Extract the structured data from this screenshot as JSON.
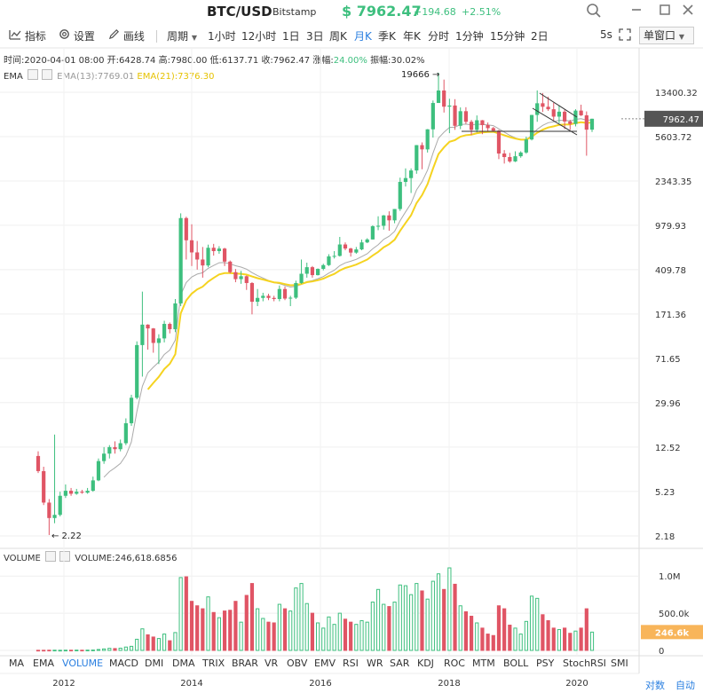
{
  "title": {
    "symbol": "BTC/USD",
    "exchange": "Bitstamp",
    "price": "$ 7962.47",
    "change": "+194.68",
    "change_pct": "+2.51%"
  },
  "window_buttons": [
    "search-icon",
    "minimize-icon",
    "maximize-icon",
    "close-icon"
  ],
  "toolbar": {
    "indicators": "指标",
    "settings": "设置",
    "draw": "画线",
    "period": "周期",
    "periods": [
      "1小时",
      "12小时",
      "1日",
      "3日",
      "周K",
      "月K",
      "季K",
      "年K",
      "分时",
      "1分钟",
      "15分钟",
      "2日"
    ],
    "active_period": "月K",
    "refresh": "5s",
    "window_mode": "单窗口"
  },
  "info": {
    "time": "时间:2020-04-01 08:00",
    "open": "开:6428.74",
    "high": "高:7980.00",
    "low": "低:6137.71",
    "close": "收:7962.47",
    "change_label": "涨幅:",
    "change_value": "24.00%",
    "amp": "振幅:30.02%"
  },
  "ema_legend": {
    "name": "EMA",
    "ema13": "EMA(13):7769.01",
    "ema21": "EMA(21):7376.30"
  },
  "vol_legend": {
    "name": "VOLUME",
    "value": "VOLUME:246,618.6856"
  },
  "indicators": [
    "MA",
    "EMA",
    "VOLUME",
    "MACD",
    "DMI",
    "DMA",
    "TRIX",
    "BRAR",
    "VR",
    "OBV",
    "EMV",
    "RSI",
    "WR",
    "SAR",
    "KDJ",
    "ROC",
    "MTM",
    "BOLL",
    "PSY",
    "StochRSI",
    "SMI"
  ],
  "active_indicator": "VOLUME",
  "bottom": {
    "contrast": "对数",
    "auto": "自动"
  },
  "colors": {
    "up": "#3dbf7e",
    "down": "#e05565",
    "ema13": "#aaaaaa",
    "ema21": "#f5d320",
    "accent": "#2a7fe0",
    "vol_tag": "#f8b55a"
  },
  "chart_data": {
    "type": "candlestick",
    "scale": "log",
    "price_ticks": [
      "13400.32",
      "5603.72",
      "2343.35",
      "979.93",
      "409.78",
      "171.36",
      "71.65",
      "29.96",
      "12.52",
      "5.23",
      "2.18"
    ],
    "vol_ticks": [
      "1.0M",
      "500.0k",
      "0"
    ],
    "x_labels": [
      "2012",
      "2014",
      "2016",
      "2018",
      "2020"
    ],
    "last_price_tag": "7962.47",
    "last_vol_tag": "246.6k",
    "max_label": "19666",
    "min_label": "2.22",
    "candles": [
      {
        "o": 10.5,
        "c": 7.8,
        "h": 11.5,
        "l": 7.5,
        "v": 2
      },
      {
        "o": 7.8,
        "c": 4.2,
        "h": 8.5,
        "l": 4.0,
        "v": 2
      },
      {
        "o": 4.2,
        "c": 3.1,
        "h": 4.5,
        "l": 2.22,
        "v": 3
      },
      {
        "o": 3.1,
        "c": 3.3,
        "h": 16.0,
        "l": 2.8,
        "v": 3
      },
      {
        "o": 3.3,
        "c": 4.8,
        "h": 5.2,
        "l": 3.2,
        "v": 2
      },
      {
        "o": 4.8,
        "c": 5.3,
        "h": 6.0,
        "l": 4.6,
        "v": 3
      },
      {
        "o": 5.3,
        "c": 5.0,
        "h": 5.6,
        "l": 4.8,
        "v": 3
      },
      {
        "o": 5.0,
        "c": 5.2,
        "h": 5.5,
        "l": 4.9,
        "v": 4
      },
      {
        "o": 5.2,
        "c": 5.1,
        "h": 5.4,
        "l": 5.0,
        "v": 3
      },
      {
        "o": 5.1,
        "c": 5.3,
        "h": 5.6,
        "l": 5.0,
        "v": 4
      },
      {
        "o": 5.3,
        "c": 6.5,
        "h": 7.0,
        "l": 5.2,
        "v": 5
      },
      {
        "o": 6.5,
        "c": 9.5,
        "h": 10.0,
        "l": 6.4,
        "v": 12
      },
      {
        "o": 9.5,
        "c": 11.0,
        "h": 12.5,
        "l": 9.0,
        "v": 20
      },
      {
        "o": 11.0,
        "c": 12.5,
        "h": 13.0,
        "l": 10.0,
        "v": 28
      },
      {
        "o": 12.5,
        "c": 12.0,
        "h": 14.0,
        "l": 11.0,
        "v": 25
      },
      {
        "o": 12.0,
        "c": 13.5,
        "h": 14.5,
        "l": 11.5,
        "v": 30
      },
      {
        "o": 13.5,
        "c": 20.0,
        "h": 22.0,
        "l": 13.0,
        "v": 45
      },
      {
        "o": 20.0,
        "c": 33.0,
        "h": 35.0,
        "l": 19.0,
        "v": 55
      },
      {
        "o": 33.0,
        "c": 93.0,
        "h": 100.0,
        "l": 32.0,
        "v": 150
      },
      {
        "o": 93.0,
        "c": 139.0,
        "h": 266.0,
        "l": 50.0,
        "v": 290
      },
      {
        "o": 139.0,
        "c": 129.0,
        "h": 140.0,
        "l": 85.0,
        "v": 210
      },
      {
        "o": 129.0,
        "c": 97.0,
        "h": 130.0,
        "l": 80.0,
        "v": 180
      },
      {
        "o": 97.0,
        "c": 106.0,
        "h": 115.0,
        "l": 64.0,
        "v": 160
      },
      {
        "o": 106.0,
        "c": 141.0,
        "h": 150.0,
        "l": 98.0,
        "v": 220
      },
      {
        "o": 141.0,
        "c": 127.0,
        "h": 145.0,
        "l": 117.0,
        "v": 130
      },
      {
        "o": 127.0,
        "c": 211.0,
        "h": 230.0,
        "l": 120.0,
        "v": 240
      },
      {
        "o": 211.0,
        "c": 1130.0,
        "h": 1240.0,
        "l": 200.0,
        "v": 980
      },
      {
        "o": 1130.0,
        "c": 730.0,
        "h": 1160.0,
        "l": 500.0,
        "v": 990
      },
      {
        "o": 730.0,
        "c": 575.0,
        "h": 1000.0,
        "l": 440.0,
        "v": 660
      },
      {
        "o": 575.0,
        "c": 500.0,
        "h": 720.0,
        "l": 410.0,
        "v": 600
      },
      {
        "o": 500.0,
        "c": 445.0,
        "h": 640.0,
        "l": 350.0,
        "v": 560
      },
      {
        "o": 445.0,
        "c": 630.0,
        "h": 670.0,
        "l": 430.0,
        "v": 720
      },
      {
        "o": 630.0,
        "c": 590.0,
        "h": 680.0,
        "l": 540.0,
        "v": 510
      },
      {
        "o": 590.0,
        "c": 620.0,
        "h": 650.0,
        "l": 560.0,
        "v": 440
      },
      {
        "o": 620.0,
        "c": 480.0,
        "h": 630.0,
        "l": 440.0,
        "v": 530
      },
      {
        "o": 480.0,
        "c": 390.0,
        "h": 490.0,
        "l": 380.0,
        "v": 540
      },
      {
        "o": 390.0,
        "c": 340.0,
        "h": 415.0,
        "l": 320.0,
        "v": 660
      },
      {
        "o": 340.0,
        "c": 360.0,
        "h": 400.0,
        "l": 310.0,
        "v": 380
      },
      {
        "o": 360.0,
        "c": 315.0,
        "h": 365.0,
        "l": 275.0,
        "v": 740
      },
      {
        "o": 315.0,
        "c": 218.0,
        "h": 320.0,
        "l": 170.0,
        "v": 900
      },
      {
        "o": 218.0,
        "c": 235.0,
        "h": 280.0,
        "l": 200.0,
        "v": 560
      },
      {
        "o": 235.0,
        "c": 245.0,
        "h": 260.0,
        "l": 220.0,
        "v": 430
      },
      {
        "o": 245.0,
        "c": 235.0,
        "h": 255.0,
        "l": 225.0,
        "v": 380
      },
      {
        "o": 235.0,
        "c": 230.0,
        "h": 245.0,
        "l": 220.0,
        "v": 370
      },
      {
        "o": 230.0,
        "c": 280.0,
        "h": 300.0,
        "l": 220.0,
        "v": 620
      },
      {
        "o": 280.0,
        "c": 232.0,
        "h": 295.0,
        "l": 225.0,
        "v": 560
      },
      {
        "o": 232.0,
        "c": 236.0,
        "h": 245.0,
        "l": 200.0,
        "v": 530
      },
      {
        "o": 236.0,
        "c": 315.0,
        "h": 330.0,
        "l": 230.0,
        "v": 840
      },
      {
        "o": 315.0,
        "c": 378.0,
        "h": 500.0,
        "l": 310.0,
        "v": 900
      },
      {
        "o": 378.0,
        "c": 430.0,
        "h": 470.0,
        "l": 350.0,
        "v": 630
      },
      {
        "o": 430.0,
        "c": 368.0,
        "h": 440.0,
        "l": 350.0,
        "v": 500
      },
      {
        "o": 368.0,
        "c": 416.0,
        "h": 420.0,
        "l": 365.0,
        "v": 370
      },
      {
        "o": 416.0,
        "c": 448.0,
        "h": 460.0,
        "l": 404.0,
        "v": 300
      },
      {
        "o": 448.0,
        "c": 532.0,
        "h": 555.0,
        "l": 440.0,
        "v": 450
      },
      {
        "o": 532.0,
        "c": 537.0,
        "h": 590.0,
        "l": 510.0,
        "v": 350
      },
      {
        "o": 537.0,
        "c": 672.0,
        "h": 780.0,
        "l": 530.0,
        "v": 500
      },
      {
        "o": 672.0,
        "c": 621.0,
        "h": 700.0,
        "l": 600.0,
        "v": 420
      },
      {
        "o": 621.0,
        "c": 573.0,
        "h": 630.0,
        "l": 530.0,
        "v": 380
      },
      {
        "o": 573.0,
        "c": 610.0,
        "h": 640.0,
        "l": 560.0,
        "v": 350
      },
      {
        "o": 610.0,
        "c": 700.0,
        "h": 740.0,
        "l": 600.0,
        "v": 400
      },
      {
        "o": 700.0,
        "c": 742.0,
        "h": 760.0,
        "l": 690.0,
        "v": 380
      },
      {
        "o": 742.0,
        "c": 963.0,
        "h": 980.0,
        "l": 740.0,
        "v": 650
      },
      {
        "o": 963.0,
        "c": 970.0,
        "h": 1170.0,
        "l": 890.0,
        "v": 820
      },
      {
        "o": 970.0,
        "c": 1190.0,
        "h": 1200.0,
        "l": 900.0,
        "v": 620
      },
      {
        "o": 1190.0,
        "c": 1080.0,
        "h": 1290.0,
        "l": 880.0,
        "v": 590
      },
      {
        "o": 1080.0,
        "c": 1350.0,
        "h": 1350.0,
        "l": 1020.0,
        "v": 650
      },
      {
        "o": 1350.0,
        "c": 2300.0,
        "h": 2500.0,
        "l": 1300.0,
        "v": 880
      },
      {
        "o": 2300.0,
        "c": 2480.0,
        "h": 3000.0,
        "l": 2100.0,
        "v": 870
      },
      {
        "o": 2480.0,
        "c": 2880.0,
        "h": 3000.0,
        "l": 1850.0,
        "v": 750
      },
      {
        "o": 2880.0,
        "c": 4740.0,
        "h": 4750.0,
        "l": 2700.0,
        "v": 900
      },
      {
        "o": 4740.0,
        "c": 4360.0,
        "h": 5000.0,
        "l": 2950.0,
        "v": 800
      },
      {
        "o": 4360.0,
        "c": 6470.0,
        "h": 6500.0,
        "l": 4100.0,
        "v": 690
      },
      {
        "o": 6470.0,
        "c": 10860.0,
        "h": 11400.0,
        "l": 5500.0,
        "v": 930
      },
      {
        "o": 10860.0,
        "c": 13880.0,
        "h": 19666.0,
        "l": 10900.0,
        "v": 1030
      },
      {
        "o": 13880.0,
        "c": 10100.0,
        "h": 17200.0,
        "l": 9000.0,
        "v": 820
      },
      {
        "o": 10100.0,
        "c": 10330.0,
        "h": 11800.0,
        "l": 6000.0,
        "v": 1110
      },
      {
        "o": 10330.0,
        "c": 6930.0,
        "h": 11700.0,
        "l": 6400.0,
        "v": 890
      },
      {
        "o": 6930.0,
        "c": 9240.0,
        "h": 9950.0,
        "l": 6500.0,
        "v": 600
      },
      {
        "o": 9240.0,
        "c": 7500.0,
        "h": 9990.0,
        "l": 7200.0,
        "v": 520
      },
      {
        "o": 7500.0,
        "c": 6400.0,
        "h": 7780.0,
        "l": 5780.0,
        "v": 460
      },
      {
        "o": 6400.0,
        "c": 7730.0,
        "h": 8500.0,
        "l": 6100.0,
        "v": 370
      },
      {
        "o": 7730.0,
        "c": 7030.0,
        "h": 7770.0,
        "l": 5880.0,
        "v": 300
      },
      {
        "o": 7030.0,
        "c": 6620.0,
        "h": 7400.0,
        "l": 6200.0,
        "v": 220
      },
      {
        "o": 6620.0,
        "c": 6300.0,
        "h": 6780.0,
        "l": 6200.0,
        "v": 200
      },
      {
        "o": 6300.0,
        "c": 4020.0,
        "h": 6400.0,
        "l": 3600.0,
        "v": 600
      },
      {
        "o": 4020.0,
        "c": 3750.0,
        "h": 4300.0,
        "l": 3300.0,
        "v": 560
      },
      {
        "o": 3750.0,
        "c": 3440.0,
        "h": 4070.0,
        "l": 3350.0,
        "v": 340
      },
      {
        "o": 3440.0,
        "c": 3810.0,
        "h": 4200.0,
        "l": 3400.0,
        "v": 300
      },
      {
        "o": 3810.0,
        "c": 4100.0,
        "h": 4200.0,
        "l": 3700.0,
        "v": 220
      },
      {
        "o": 4100.0,
        "c": 5300.0,
        "h": 5600.0,
        "l": 4000.0,
        "v": 390
      },
      {
        "o": 5300.0,
        "c": 8580.0,
        "h": 8600.0,
        "l": 5200.0,
        "v": 730
      },
      {
        "o": 8580.0,
        "c": 10800.0,
        "h": 13900.0,
        "l": 7500.0,
        "v": 700
      },
      {
        "o": 10800.0,
        "c": 10080.0,
        "h": 13200.0,
        "l": 9100.0,
        "v": 480
      },
      {
        "o": 10080.0,
        "c": 9600.0,
        "h": 12300.0,
        "l": 9300.0,
        "v": 400
      },
      {
        "o": 9600.0,
        "c": 8300.0,
        "h": 10900.0,
        "l": 7700.0,
        "v": 300
      },
      {
        "o": 8300.0,
        "c": 9150.0,
        "h": 10400.0,
        "l": 7300.0,
        "v": 280
      },
      {
        "o": 9150.0,
        "c": 7550.0,
        "h": 9500.0,
        "l": 6500.0,
        "v": 300
      },
      {
        "o": 7550.0,
        "c": 7190.0,
        "h": 7800.0,
        "l": 6400.0,
        "v": 230
      },
      {
        "o": 7190.0,
        "c": 9350.0,
        "h": 9600.0,
        "l": 6850.0,
        "v": 260
      },
      {
        "o": 9350.0,
        "c": 8520.0,
        "h": 10500.0,
        "l": 8400.0,
        "v": 300
      },
      {
        "o": 8520.0,
        "c": 6428.0,
        "h": 9200.0,
        "l": 3850.0,
        "v": 560
      },
      {
        "o": 6428.0,
        "c": 7962.0,
        "h": 7980.0,
        "l": 6137.0,
        "v": 246
      }
    ],
    "ema13_last": 7769.01,
    "ema21_last": 7376.3
  }
}
